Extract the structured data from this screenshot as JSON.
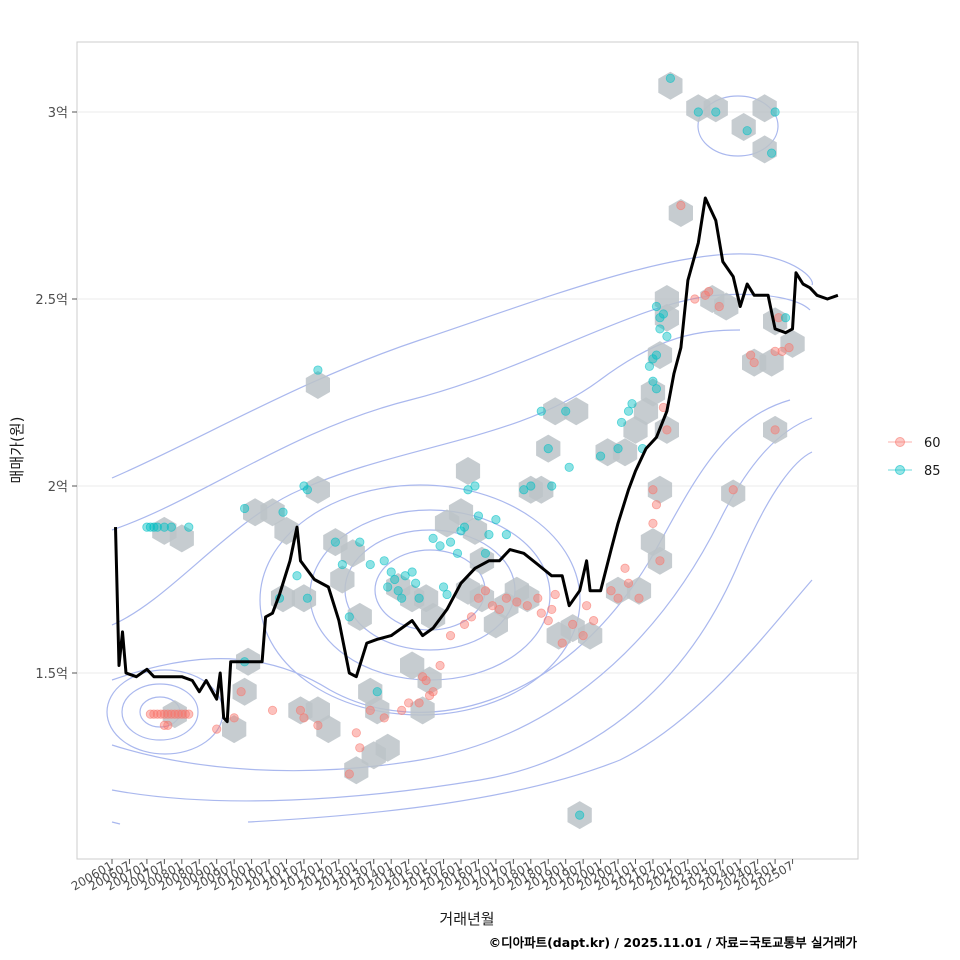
{
  "chart_data": {
    "type": "scatter",
    "title": "",
    "xlabel": "거래년월",
    "ylabel": "매매가(원)",
    "caption": "©디아파트(dapt.kr) / 2025.11.01 / 자료=국토교통부 실거래가",
    "x_range": [
      "2006-01",
      "2025-11"
    ],
    "ylim": [
      1.05,
      3.2
    ],
    "y_ticks": [
      {
        "value": 1.5,
        "label": "1.5억"
      },
      {
        "value": 2.0,
        "label": "2억"
      },
      {
        "value": 2.5,
        "label": "2.5억"
      },
      {
        "value": 3.0,
        "label": "3억"
      }
    ],
    "x_ticks": [
      "200601",
      "200607",
      "200701",
      "200707",
      "200801",
      "200807",
      "200901",
      "200907",
      "201001",
      "201007",
      "201101",
      "201107",
      "201201",
      "201207",
      "201301",
      "201307",
      "201401",
      "201407",
      "201501",
      "201507",
      "201601",
      "201607",
      "201701",
      "201707",
      "201801",
      "201807",
      "201901",
      "201907",
      "202001",
      "202007",
      "202101",
      "202107",
      "202201",
      "202207",
      "202301",
      "202307",
      "202401",
      "202407",
      "202501",
      "202507"
    ],
    "legend": {
      "position": "right",
      "entries": [
        {
          "label": "60",
          "color": "#F8766D"
        },
        {
          "label": "85",
          "color": "#00BFC4"
        }
      ]
    },
    "hexbin_color": "#bcc3c8",
    "contour_color": "#aab8ee",
    "trend_color": "#000000",
    "series": [
      {
        "name": "60",
        "color": "#F8766D",
        "points": [
          [
            2007.1,
            1.39
          ],
          [
            2007.2,
            1.39
          ],
          [
            2007.3,
            1.39
          ],
          [
            2007.4,
            1.39
          ],
          [
            2007.5,
            1.39
          ],
          [
            2007.6,
            1.39
          ],
          [
            2007.7,
            1.39
          ],
          [
            2007.8,
            1.39
          ],
          [
            2007.9,
            1.39
          ],
          [
            2008.0,
            1.39
          ],
          [
            2008.1,
            1.39
          ],
          [
            2008.2,
            1.39
          ],
          [
            2007.5,
            1.36
          ],
          [
            2007.6,
            1.36
          ],
          [
            2009.0,
            1.35
          ],
          [
            2009.5,
            1.38
          ],
          [
            2009.7,
            1.45
          ],
          [
            2010.6,
            1.4
          ],
          [
            2011.4,
            1.4
          ],
          [
            2011.5,
            1.38
          ],
          [
            2011.9,
            1.36
          ],
          [
            2012.8,
            1.23
          ],
          [
            2013.0,
            1.34
          ],
          [
            2013.1,
            1.3
          ],
          [
            2013.4,
            1.4
          ],
          [
            2013.8,
            1.38
          ],
          [
            2014.3,
            1.4
          ],
          [
            2014.5,
            1.42
          ],
          [
            2014.8,
            1.42
          ],
          [
            2014.9,
            1.49
          ],
          [
            2015.0,
            1.48
          ],
          [
            2015.1,
            1.44
          ],
          [
            2015.2,
            1.45
          ],
          [
            2015.4,
            1.52
          ],
          [
            2015.7,
            1.6
          ],
          [
            2016.1,
            1.63
          ],
          [
            2016.3,
            1.65
          ],
          [
            2016.5,
            1.7
          ],
          [
            2016.7,
            1.72
          ],
          [
            2016.9,
            1.68
          ],
          [
            2017.1,
            1.67
          ],
          [
            2017.3,
            1.7
          ],
          [
            2017.6,
            1.69
          ],
          [
            2017.9,
            1.68
          ],
          [
            2018.2,
            1.7
          ],
          [
            2018.3,
            1.66
          ],
          [
            2018.5,
            1.64
          ],
          [
            2018.6,
            1.67
          ],
          [
            2018.7,
            1.71
          ],
          [
            2018.9,
            1.58
          ],
          [
            2019.2,
            1.63
          ],
          [
            2019.5,
            1.6
          ],
          [
            2019.6,
            1.68
          ],
          [
            2019.8,
            1.64
          ],
          [
            2020.3,
            1.72
          ],
          [
            2020.5,
            1.7
          ],
          [
            2020.7,
            1.78
          ],
          [
            2020.8,
            1.74
          ],
          [
            2021.1,
            1.7
          ],
          [
            2021.5,
            1.99
          ],
          [
            2021.6,
            1.95
          ],
          [
            2021.5,
            1.9
          ],
          [
            2021.7,
            1.8
          ],
          [
            2021.8,
            2.21
          ],
          [
            2021.9,
            2.15
          ],
          [
            2022.3,
            2.75
          ],
          [
            2022.7,
            2.5
          ],
          [
            2023.0,
            2.51
          ],
          [
            2023.1,
            2.52
          ],
          [
            2023.4,
            2.48
          ],
          [
            2023.8,
            1.99
          ],
          [
            2024.3,
            2.35
          ],
          [
            2024.4,
            2.33
          ],
          [
            2025.0,
            2.36
          ],
          [
            2025.1,
            2.45
          ],
          [
            2025.2,
            2.36
          ],
          [
            2025.4,
            2.37
          ],
          [
            2025.0,
            2.15
          ]
        ]
      },
      {
        "name": "85",
        "color": "#00BFC4",
        "points": [
          [
            2007.0,
            1.89
          ],
          [
            2007.1,
            1.89
          ],
          [
            2007.2,
            1.89
          ],
          [
            2007.3,
            1.89
          ],
          [
            2007.5,
            1.89
          ],
          [
            2007.7,
            1.89
          ],
          [
            2008.2,
            1.89
          ],
          [
            2009.8,
            1.53
          ],
          [
            2009.8,
            1.94
          ],
          [
            2010.9,
            1.93
          ],
          [
            2010.8,
            1.7
          ],
          [
            2011.3,
            1.76
          ],
          [
            2011.5,
            2.0
          ],
          [
            2011.6,
            1.99
          ],
          [
            2011.6,
            1.7
          ],
          [
            2011.9,
            2.31
          ],
          [
            2012.4,
            1.85
          ],
          [
            2012.6,
            1.79
          ],
          [
            2012.8,
            1.65
          ],
          [
            2013.1,
            1.85
          ],
          [
            2013.4,
            1.79
          ],
          [
            2013.6,
            1.45
          ],
          [
            2013.8,
            1.8
          ],
          [
            2013.9,
            1.73
          ],
          [
            2014.0,
            1.77
          ],
          [
            2014.1,
            1.75
          ],
          [
            2014.2,
            1.72
          ],
          [
            2014.3,
            1.7
          ],
          [
            2014.4,
            1.76
          ],
          [
            2014.6,
            1.77
          ],
          [
            2014.7,
            1.74
          ],
          [
            2014.8,
            1.7
          ],
          [
            2015.2,
            1.86
          ],
          [
            2015.4,
            1.84
          ],
          [
            2015.5,
            1.73
          ],
          [
            2015.6,
            1.71
          ],
          [
            2015.7,
            1.85
          ],
          [
            2015.9,
            1.82
          ],
          [
            2016.0,
            1.88
          ],
          [
            2016.1,
            1.89
          ],
          [
            2016.2,
            1.99
          ],
          [
            2016.4,
            2.0
          ],
          [
            2016.5,
            1.92
          ],
          [
            2016.7,
            1.82
          ],
          [
            2016.8,
            1.87
          ],
          [
            2017.0,
            1.91
          ],
          [
            2017.3,
            1.87
          ],
          [
            2017.8,
            1.99
          ],
          [
            2018.0,
            2.0
          ],
          [
            2018.3,
            2.2
          ],
          [
            2018.5,
            2.1
          ],
          [
            2018.6,
            2.0
          ],
          [
            2019.0,
            2.2
          ],
          [
            2019.1,
            2.05
          ],
          [
            2019.4,
            1.12
          ],
          [
            2020.0,
            2.08
          ],
          [
            2020.5,
            2.1
          ],
          [
            2020.6,
            2.17
          ],
          [
            2020.8,
            2.2
          ],
          [
            2020.9,
            2.22
          ],
          [
            2021.2,
            2.1
          ],
          [
            2021.4,
            2.32
          ],
          [
            2021.5,
            2.34
          ],
          [
            2021.5,
            2.28
          ],
          [
            2021.6,
            2.26
          ],
          [
            2021.6,
            2.35
          ],
          [
            2021.6,
            2.48
          ],
          [
            2021.7,
            2.45
          ],
          [
            2021.7,
            2.42
          ],
          [
            2021.8,
            2.46
          ],
          [
            2021.9,
            2.4
          ],
          [
            2022.0,
            3.09
          ],
          [
            2022.8,
            3.0
          ],
          [
            2023.3,
            3.0
          ],
          [
            2024.2,
            2.95
          ],
          [
            2024.9,
            2.89
          ],
          [
            2025.0,
            3.0
          ],
          [
            2025.3,
            2.45
          ]
        ]
      }
    ],
    "trend": [
      [
        2006.1,
        1.89
      ],
      [
        2006.2,
        1.52
      ],
      [
        2006.3,
        1.61
      ],
      [
        2006.4,
        1.5
      ],
      [
        2006.7,
        1.49
      ],
      [
        2007.0,
        1.51
      ],
      [
        2007.2,
        1.49
      ],
      [
        2008.0,
        1.49
      ],
      [
        2008.3,
        1.48
      ],
      [
        2008.5,
        1.45
      ],
      [
        2008.7,
        1.48
      ],
      [
        2009.0,
        1.43
      ],
      [
        2009.1,
        1.5
      ],
      [
        2009.2,
        1.38
      ],
      [
        2009.3,
        1.37
      ],
      [
        2009.4,
        1.53
      ],
      [
        2010.3,
        1.53
      ],
      [
        2010.4,
        1.65
      ],
      [
        2010.6,
        1.66
      ],
      [
        2010.8,
        1.71
      ],
      [
        2011.0,
        1.77
      ],
      [
        2011.1,
        1.8
      ],
      [
        2011.3,
        1.89
      ],
      [
        2011.4,
        1.8
      ],
      [
        2011.8,
        1.75
      ],
      [
        2012.2,
        1.73
      ],
      [
        2012.5,
        1.64
      ],
      [
        2012.8,
        1.5
      ],
      [
        2013.0,
        1.49
      ],
      [
        2013.3,
        1.58
      ],
      [
        2013.6,
        1.59
      ],
      [
        2014.0,
        1.6
      ],
      [
        2014.3,
        1.62
      ],
      [
        2014.6,
        1.64
      ],
      [
        2014.9,
        1.6
      ],
      [
        2015.2,
        1.62
      ],
      [
        2015.6,
        1.67
      ],
      [
        2016.0,
        1.74
      ],
      [
        2016.4,
        1.78
      ],
      [
        2016.8,
        1.8
      ],
      [
        2017.1,
        1.8
      ],
      [
        2017.4,
        1.83
      ],
      [
        2017.8,
        1.82
      ],
      [
        2018.2,
        1.79
      ],
      [
        2018.6,
        1.76
      ],
      [
        2018.9,
        1.76
      ],
      [
        2019.1,
        1.68
      ],
      [
        2019.4,
        1.72
      ],
      [
        2019.6,
        1.8
      ],
      [
        2019.7,
        1.72
      ],
      [
        2020.0,
        1.72
      ],
      [
        2020.3,
        1.83
      ],
      [
        2020.5,
        1.9
      ],
      [
        2020.8,
        1.99
      ],
      [
        2021.0,
        2.04
      ],
      [
        2021.3,
        2.1
      ],
      [
        2021.6,
        2.13
      ],
      [
        2021.9,
        2.2
      ],
      [
        2022.1,
        2.3
      ],
      [
        2022.3,
        2.37
      ],
      [
        2022.5,
        2.55
      ],
      [
        2022.8,
        2.65
      ],
      [
        2023.0,
        2.77
      ],
      [
        2023.3,
        2.71
      ],
      [
        2023.5,
        2.6
      ],
      [
        2023.8,
        2.56
      ],
      [
        2024.0,
        2.48
      ],
      [
        2024.2,
        2.54
      ],
      [
        2024.4,
        2.51
      ],
      [
        2024.8,
        2.51
      ],
      [
        2025.0,
        2.42
      ],
      [
        2025.3,
        2.41
      ],
      [
        2025.5,
        2.42
      ],
      [
        2025.6,
        2.57
      ],
      [
        2025.8,
        2.54
      ],
      [
        2026.0,
        2.53
      ],
      [
        2026.2,
        2.51
      ],
      [
        2026.5,
        2.5
      ],
      [
        2026.8,
        2.51
      ]
    ],
    "hexbins": [
      [
        2007.5,
        1.88
      ],
      [
        2008.0,
        1.86
      ],
      [
        2007.8,
        1.39
      ],
      [
        2009.5,
        1.35
      ],
      [
        2009.9,
        1.53
      ],
      [
        2009.8,
        1.45
      ],
      [
        2010.1,
        1.93
      ],
      [
        2010.6,
        1.93
      ],
      [
        2011.0,
        1.88
      ],
      [
        2010.9,
        1.7
      ],
      [
        2011.9,
        2.27
      ],
      [
        2011.9,
        1.99
      ],
      [
        2011.4,
        1.4
      ],
      [
        2011.9,
        1.4
      ],
      [
        2012.2,
        1.35
      ],
      [
        2011.5,
        1.7
      ],
      [
        2012.4,
        1.85
      ],
      [
        2012.9,
        1.82
      ],
      [
        2012.6,
        1.75
      ],
      [
        2013.1,
        1.65
      ],
      [
        2013.4,
        1.45
      ],
      [
        2013.6,
        1.4
      ],
      [
        2013.5,
        1.28
      ],
      [
        2013.0,
        1.24
      ],
      [
        2013.9,
        1.3
      ],
      [
        2014.2,
        1.73
      ],
      [
        2014.6,
        1.7
      ],
      [
        2015.0,
        1.7
      ],
      [
        2015.2,
        1.65
      ],
      [
        2014.6,
        1.52
      ],
      [
        2015.1,
        1.48
      ],
      [
        2014.9,
        1.4
      ],
      [
        2015.6,
        1.9
      ],
      [
        2016.2,
        2.04
      ],
      [
        2016.0,
        1.93
      ],
      [
        2016.4,
        1.88
      ],
      [
        2016.6,
        1.8
      ],
      [
        2016.2,
        1.72
      ],
      [
        2016.6,
        1.7
      ],
      [
        2017.0,
        1.63
      ],
      [
        2017.3,
        1.68
      ],
      [
        2017.6,
        1.72
      ],
      [
        2017.9,
        1.7
      ],
      [
        2018.0,
        1.99
      ],
      [
        2018.3,
        1.99
      ],
      [
        2018.5,
        2.1
      ],
      [
        2018.7,
        2.2
      ],
      [
        2019.3,
        2.2
      ],
      [
        2018.8,
        1.6
      ],
      [
        2019.2,
        1.62
      ],
      [
        2019.7,
        1.6
      ],
      [
        2019.4,
        1.12
      ],
      [
        2020.2,
        2.09
      ],
      [
        2020.7,
        2.09
      ],
      [
        2020.5,
        1.72
      ],
      [
        2021.1,
        1.72
      ],
      [
        2021.0,
        2.15
      ],
      [
        2021.3,
        2.2
      ],
      [
        2021.5,
        2.25
      ],
      [
        2021.7,
        2.35
      ],
      [
        2021.9,
        2.45
      ],
      [
        2021.9,
        2.5
      ],
      [
        2021.7,
        1.99
      ],
      [
        2021.5,
        1.85
      ],
      [
        2021.7,
        1.8
      ],
      [
        2021.9,
        2.15
      ],
      [
        2022.0,
        3.07
      ],
      [
        2022.3,
        2.73
      ],
      [
        2022.8,
        3.01
      ],
      [
        2023.3,
        3.01
      ],
      [
        2024.1,
        2.96
      ],
      [
        2024.7,
        3.01
      ],
      [
        2024.7,
        2.9
      ],
      [
        2023.2,
        2.5
      ],
      [
        2023.6,
        2.48
      ],
      [
        2023.8,
        1.98
      ],
      [
        2024.4,
        2.33
      ],
      [
        2024.9,
        2.33
      ],
      [
        2025.0,
        2.44
      ],
      [
        2025.5,
        2.38
      ],
      [
        2025.0,
        2.15
      ]
    ]
  }
}
